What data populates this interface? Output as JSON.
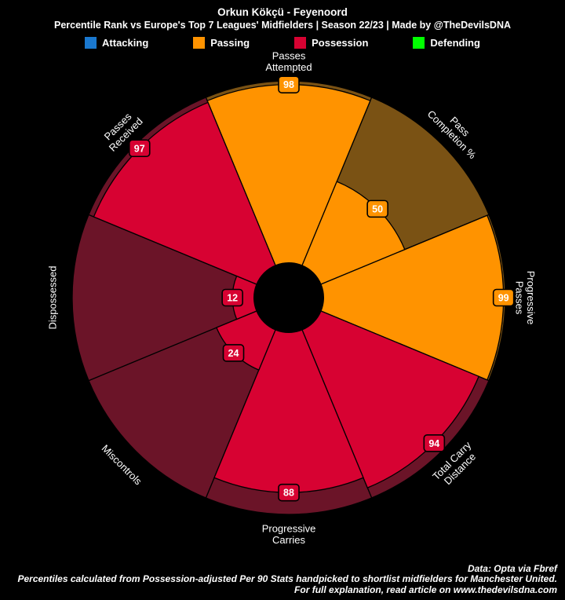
{
  "header": {
    "title": "Orkun Kökçü - Feyenoord",
    "subtitle": "Percentile Rank vs Europe's Top 7 Leagues' Midfielders | Season 22/23 | Made by @TheDevilsDNA",
    "legend": [
      {
        "label": "Attacking",
        "color": "#1A78CF"
      },
      {
        "label": "Passing",
        "color": "#FF9300"
      },
      {
        "label": "Possession",
        "color": "#D70232"
      },
      {
        "label": "Defending",
        "color": "#00FF00"
      }
    ]
  },
  "chart_data": {
    "type": "pie",
    "variant": "percentile-pizza",
    "value_range": [
      0,
      100
    ],
    "background": "#000000",
    "categories": [
      "Passes Attempted",
      "Pass Completion %",
      "Progressive Passes",
      "Total Carry Distance",
      "Progressive Carries",
      "Miscontrols",
      "Dispossessed",
      "Passes Received"
    ],
    "values": [
      98,
      50,
      99,
      94,
      88,
      24,
      12,
      97
    ],
    "slices": [
      {
        "param": "Passes Attempted",
        "label_lines": [
          "Passes",
          "Attempted"
        ],
        "value": 98,
        "group": "Passing"
      },
      {
        "param": "Pass Completion %",
        "label_lines": [
          "Pass",
          "Completion %"
        ],
        "value": 50,
        "group": "Passing"
      },
      {
        "param": "Progressive Passes",
        "label_lines": [
          "Progressive",
          "Passes"
        ],
        "value": 99,
        "group": "Passing"
      },
      {
        "param": "Total Carry Distance",
        "label_lines": [
          "Total Carry",
          "Distance"
        ],
        "value": 94,
        "group": "Possession"
      },
      {
        "param": "Progressive Carries",
        "label_lines": [
          "Progressive",
          "Carries"
        ],
        "value": 88,
        "group": "Possession"
      },
      {
        "param": "Miscontrols",
        "label_lines": [
          "Miscontrols"
        ],
        "value": 24,
        "group": "Possession"
      },
      {
        "param": "Dispossessed",
        "label_lines": [
          "Dispossessed"
        ],
        "value": 12,
        "group": "Possession"
      },
      {
        "param": "Passes Received",
        "label_lines": [
          "Passes",
          "Received"
        ],
        "value": 97,
        "group": "Possession"
      }
    ],
    "group_colors": {
      "Attacking": "#1A78CF",
      "Passing": "#FF9300",
      "Possession": "#D70232",
      "Defending": "#00FF00"
    },
    "muted_colors": {
      "Passing": "#7A5214",
      "Possession": "#6B1428"
    },
    "slice_edge_color": "#000000",
    "value_text_color": "#FFFFFF",
    "param_text_color": "#FFFFFF",
    "legend_position": "top"
  },
  "footer": {
    "line1": "Data: Opta via Fbref",
    "line2": "Percentiles calculated from Possession-adjusted Per 90 Stats handpicked to shortlist midfielders for Manchester United.",
    "line3": "For full explanation, read article on www.thedevilsdna.com"
  }
}
